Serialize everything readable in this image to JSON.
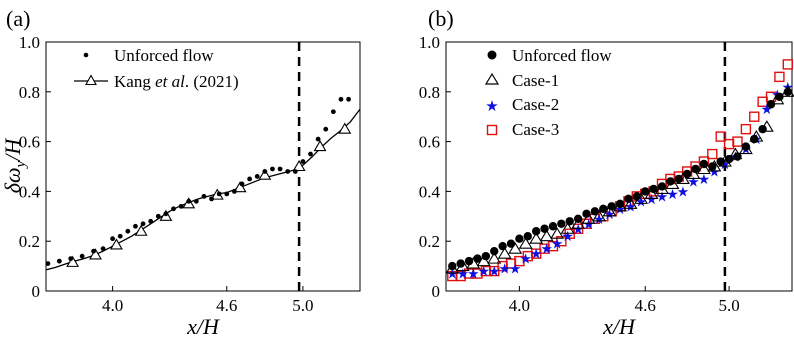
{
  "chart_data": [
    {
      "panel_label": "(a)",
      "type": "scatter",
      "xlabel": "x/H",
      "ylabel": "δω_y/H",
      "xlim": [
        3.65,
        5.3
      ],
      "ylim": [
        0,
        1.0
      ],
      "xticks": [
        "4.0",
        "4.6",
        "5.0"
      ],
      "xtick_values": [
        4.0,
        4.6,
        5.0
      ],
      "yticks": [
        "0",
        "0.2",
        "0.4",
        "0.6",
        "0.8",
        "1.0"
      ],
      "ytick_values": [
        0,
        0.2,
        0.4,
        0.6,
        0.8,
        1.0
      ],
      "vline_x": 4.98,
      "legend_position": "top-left",
      "series": [
        {
          "name": "Unforced flow",
          "marker": "dot",
          "color": "#000000",
          "x": [
            3.66,
            3.72,
            3.78,
            3.84,
            3.9,
            3.95,
            4.0,
            4.04,
            4.08,
            4.12,
            4.16,
            4.2,
            4.24,
            4.28,
            4.32,
            4.36,
            4.4,
            4.44,
            4.48,
            4.52,
            4.56,
            4.6,
            4.64,
            4.68,
            4.72,
            4.76,
            4.8,
            4.84,
            4.88,
            4.92,
            4.96,
            5.0,
            5.04,
            5.08,
            5.12,
            5.16,
            5.2,
            5.24
          ],
          "y": [
            0.11,
            0.12,
            0.13,
            0.14,
            0.16,
            0.17,
            0.21,
            0.22,
            0.24,
            0.26,
            0.27,
            0.28,
            0.3,
            0.31,
            0.33,
            0.34,
            0.36,
            0.36,
            0.38,
            0.37,
            0.39,
            0.39,
            0.4,
            0.43,
            0.45,
            0.46,
            0.48,
            0.49,
            0.49,
            0.48,
            0.48,
            0.52,
            0.55,
            0.61,
            0.65,
            0.72,
            0.77,
            0.77
          ]
        },
        {
          "name": "Kang et al. (2021)",
          "marker": "triangle-line",
          "color": "#000000",
          "x": [
            3.65,
            3.7,
            3.75,
            3.8,
            3.85,
            3.9,
            3.95,
            4.0,
            4.05,
            4.1,
            4.15,
            4.2,
            4.25,
            4.3,
            4.35,
            4.4,
            4.45,
            4.5,
            4.55,
            4.6,
            4.65,
            4.7,
            4.75,
            4.8,
            4.85,
            4.9,
            4.95,
            5.0,
            5.05,
            5.1,
            5.15,
            5.2,
            5.25,
            5.3
          ],
          "y": [
            0.085,
            0.095,
            0.108,
            0.12,
            0.13,
            0.143,
            0.16,
            0.18,
            0.2,
            0.22,
            0.245,
            0.27,
            0.295,
            0.32,
            0.34,
            0.355,
            0.37,
            0.38,
            0.39,
            0.395,
            0.41,
            0.425,
            0.44,
            0.455,
            0.465,
            0.475,
            0.485,
            0.505,
            0.54,
            0.58,
            0.615,
            0.645,
            0.68,
            0.73
          ],
          "marker_x": [
            3.79,
            3.91,
            4.02,
            4.15,
            4.28,
            4.4,
            4.55,
            4.67,
            4.8,
            4.98,
            5.09,
            5.22
          ],
          "marker_y": [
            0.115,
            0.145,
            0.185,
            0.24,
            0.3,
            0.35,
            0.385,
            0.415,
            0.465,
            0.5,
            0.58,
            0.65
          ]
        }
      ],
      "legend_labels": {
        "unforced": "Unforced flow",
        "kang_prefix": "Kang ",
        "kang_italic": "et al",
        "kang_suffix": ". (2021)"
      }
    },
    {
      "panel_label": "(b)",
      "type": "scatter",
      "xlabel": "x/H",
      "ylabel": "",
      "xlim": [
        3.65,
        5.3
      ],
      "ylim": [
        0,
        1.0
      ],
      "xticks": [
        "4.0",
        "4.6",
        "5.0"
      ],
      "xtick_values": [
        4.0,
        4.6,
        5.0
      ],
      "yticks": [
        "0",
        "0.2",
        "0.4",
        "0.6",
        "0.8",
        "1.0"
      ],
      "ytick_values": [
        0,
        0.2,
        0.4,
        0.6,
        0.8,
        1.0
      ],
      "vline_x": 4.98,
      "legend_position": "top-left",
      "series": [
        {
          "name": "Unforced flow",
          "marker": "filled-circle",
          "color": "#000000",
          "x": [
            3.68,
            3.72,
            3.76,
            3.8,
            3.84,
            3.88,
            3.92,
            3.96,
            4.0,
            4.04,
            4.08,
            4.12,
            4.16,
            4.2,
            4.24,
            4.28,
            4.32,
            4.36,
            4.4,
            4.44,
            4.48,
            4.52,
            4.56,
            4.6,
            4.64,
            4.68,
            4.72,
            4.76,
            4.8,
            4.84,
            4.88,
            4.92,
            4.96,
            5.0,
            5.04,
            5.08,
            5.12,
            5.16,
            5.2,
            5.24,
            5.28
          ],
          "y": [
            0.1,
            0.11,
            0.12,
            0.13,
            0.14,
            0.16,
            0.18,
            0.19,
            0.21,
            0.22,
            0.24,
            0.25,
            0.26,
            0.27,
            0.28,
            0.29,
            0.31,
            0.32,
            0.33,
            0.34,
            0.35,
            0.37,
            0.38,
            0.4,
            0.41,
            0.42,
            0.44,
            0.45,
            0.47,
            0.49,
            0.51,
            0.5,
            0.52,
            0.53,
            0.54,
            0.58,
            0.61,
            0.65,
            0.75,
            0.78,
            0.8
          ]
        },
        {
          "name": "Case-1",
          "marker": "open-triangle",
          "color": "#000000",
          "x": [
            3.68,
            3.73,
            3.78,
            3.83,
            3.88,
            3.93,
            3.98,
            4.03,
            4.08,
            4.13,
            4.18,
            4.23,
            4.28,
            4.33,
            4.38,
            4.43,
            4.48,
            4.53,
            4.58,
            4.63,
            4.68,
            4.73,
            4.78,
            4.83,
            4.88,
            4.93,
            4.98,
            5.03,
            5.08,
            5.13,
            5.18,
            5.23,
            5.28
          ],
          "y": [
            0.09,
            0.1,
            0.11,
            0.12,
            0.13,
            0.15,
            0.17,
            0.19,
            0.21,
            0.22,
            0.23,
            0.25,
            0.27,
            0.29,
            0.3,
            0.32,
            0.34,
            0.35,
            0.37,
            0.39,
            0.41,
            0.43,
            0.45,
            0.47,
            0.49,
            0.5,
            0.52,
            0.55,
            0.57,
            0.62,
            0.66,
            0.77,
            0.8
          ]
        },
        {
          "name": "Case-2",
          "marker": "star",
          "color": "#1010e0",
          "x": [
            3.68,
            3.73,
            3.78,
            3.83,
            3.88,
            3.93,
            3.98,
            4.03,
            4.08,
            4.13,
            4.18,
            4.23,
            4.28,
            4.33,
            4.38,
            4.43,
            4.48,
            4.53,
            4.58,
            4.63,
            4.68,
            4.73,
            4.78,
            4.83,
            4.88,
            4.93,
            4.98,
            5.03,
            5.08,
            5.13,
            5.18,
            5.23,
            5.28
          ],
          "y": [
            0.07,
            0.07,
            0.07,
            0.08,
            0.08,
            0.09,
            0.09,
            0.13,
            0.15,
            0.17,
            0.19,
            0.22,
            0.25,
            0.27,
            0.29,
            0.31,
            0.33,
            0.34,
            0.36,
            0.37,
            0.38,
            0.39,
            0.4,
            0.44,
            0.45,
            0.48,
            0.51,
            0.54,
            0.57,
            0.61,
            0.73,
            0.79,
            0.82
          ]
        },
        {
          "name": "Case-3",
          "marker": "open-square",
          "color": "#e01010",
          "x": [
            3.68,
            3.72,
            3.76,
            3.8,
            3.84,
            3.88,
            3.92,
            3.96,
            4.0,
            4.04,
            4.08,
            4.12,
            4.16,
            4.2,
            4.24,
            4.28,
            4.32,
            4.36,
            4.4,
            4.44,
            4.48,
            4.52,
            4.56,
            4.6,
            4.64,
            4.68,
            4.72,
            4.76,
            4.8,
            4.84,
            4.88,
            4.92,
            4.96,
            5.0,
            5.04,
            5.08,
            5.12,
            5.16,
            5.2,
            5.24,
            5.28
          ],
          "y": [
            0.06,
            0.06,
            0.07,
            0.07,
            0.08,
            0.08,
            0.1,
            0.11,
            0.12,
            0.14,
            0.15,
            0.17,
            0.18,
            0.2,
            0.23,
            0.25,
            0.27,
            0.29,
            0.3,
            0.32,
            0.34,
            0.36,
            0.38,
            0.39,
            0.4,
            0.43,
            0.45,
            0.46,
            0.48,
            0.5,
            0.52,
            0.55,
            0.62,
            0.59,
            0.6,
            0.65,
            0.7,
            0.76,
            0.78,
            0.86,
            0.91
          ]
        }
      ]
    }
  ]
}
